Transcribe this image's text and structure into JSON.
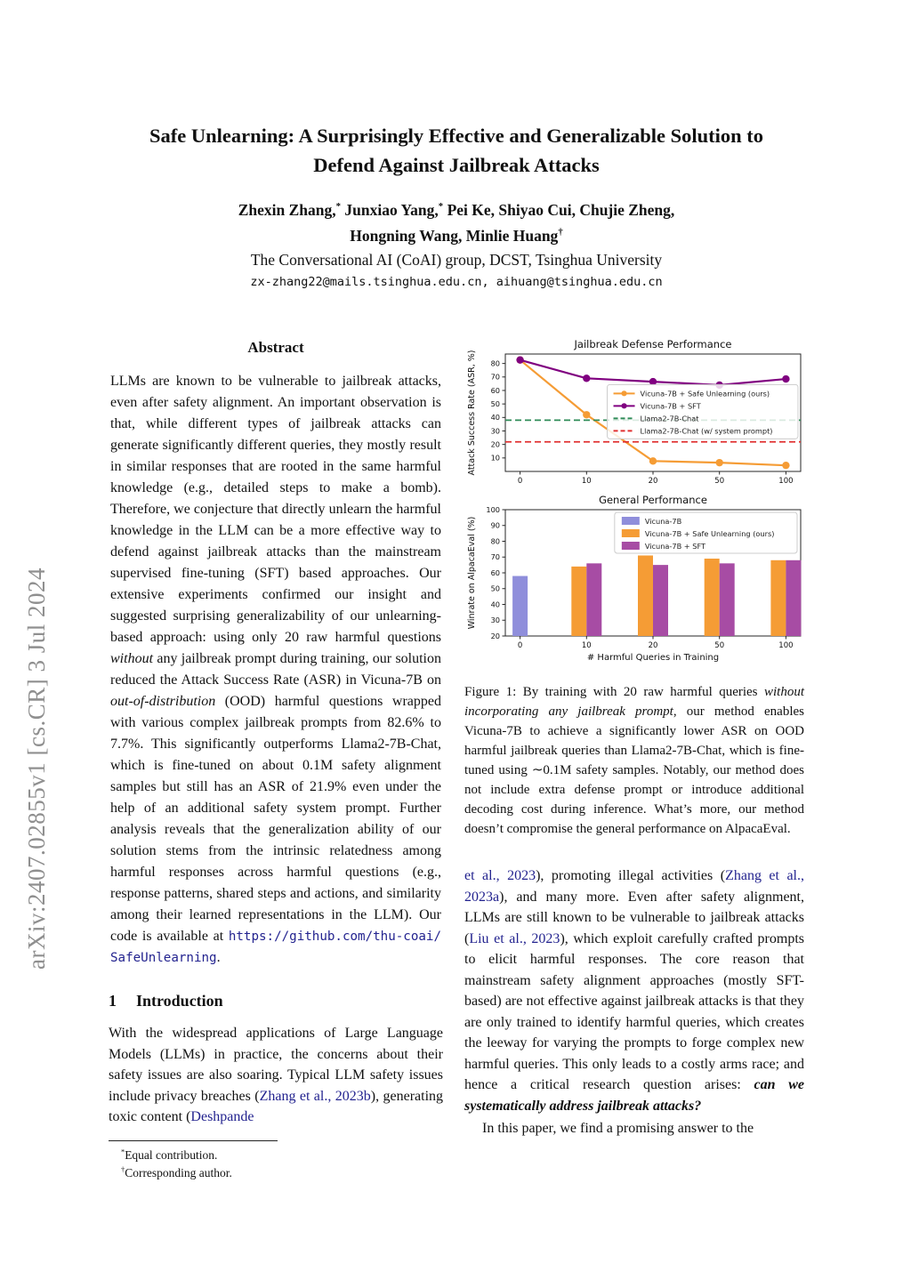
{
  "arxiv_watermark": "arXiv:2407.02855v1  [cs.CR]  3 Jul 2024",
  "header": {
    "title_line1": "Safe Unlearning: A Surprisingly Effective and Generalizable Solution to",
    "title_line2": "Defend Against Jailbreak Attacks",
    "authors_line1": [
      {
        "t": "Zhexin Zhang,"
      },
      {
        "t": "*",
        "s": "sup"
      },
      {
        "t": " Junxiao Yang,"
      },
      {
        "t": "*",
        "s": "sup"
      },
      {
        "t": " Pei Ke, Shiyao Cui, Chujie Zheng,"
      }
    ],
    "authors_line2": [
      {
        "t": "Hongning Wang, Minlie Huang"
      },
      {
        "t": "†",
        "s": "sup"
      }
    ],
    "affiliation": "The Conversational AI (CoAI) group, DCST, Tsinghua University",
    "emails": "zx-zhang22@mails.tsinghua.edu.cn, aihuang@tsinghua.edu.cn"
  },
  "abstract": {
    "heading": "Abstract",
    "segments": [
      {
        "t": "LLMs are known to be vulnerable to jailbreak attacks, even after safety alignment. An important observation is that, while different types of jailbreak attacks can generate significantly different queries, they mostly result in similar responses that are rooted in the same harmful knowledge (e.g., detailed steps to make a bomb). Therefore, we conjecture that directly unlearn the harmful knowledge in the LLM can be a more effective way to defend against jailbreak attacks than the mainstream supervised fine-tuning (SFT) based approaches. Our extensive experiments confirmed our insight and suggested surprising generalizability of our unlearning-based approach: using only 20 raw harmful questions "
      },
      {
        "t": "without",
        "s": "i"
      },
      {
        "t": " any jailbreak prompt during training, our solution reduced the Attack Success Rate (ASR) in Vicuna-7B on "
      },
      {
        "t": "out-of-distribution",
        "s": "i"
      },
      {
        "t": " (OOD) harmful questions wrapped with various complex jailbreak prompts from 82.6% to 7.7%. This significantly outperforms Llama2-7B-Chat, which is fine-tuned on about 0.1M safety alignment samples but still has an ASR of 21.9% even under the help of an additional safety system prompt. Further analysis reveals that the generalization ability of our solution stems from the intrinsic relatedness among harmful responses across harmful questions (e.g., response patterns, shared steps and actions, and similarity among their learned representations in the LLM). Our code is available at "
      },
      {
        "t": "https://github.com/thu-coai/SafeUnlearning",
        "s": "mono-link"
      },
      {
        "t": "."
      }
    ]
  },
  "introduction": {
    "number": "1",
    "heading": "Introduction",
    "segments": [
      {
        "t": "With the widespread applications of Large Language Models (LLMs) in practice, the concerns about their safety issues are also soaring. Typical LLM safety issues include privacy breaches ("
      },
      {
        "t": "Zhang et al., 2023b",
        "s": "link"
      },
      {
        "t": "), generating toxic content ("
      },
      {
        "t": "Deshpande",
        "s": "link"
      }
    ]
  },
  "footnotes": {
    "equal": [
      {
        "t": "*",
        "s": "sup"
      },
      {
        "t": "Equal contribution."
      }
    ],
    "corresponding": [
      {
        "t": "†",
        "s": "sup"
      },
      {
        "t": "Corresponding author."
      }
    ]
  },
  "figure": {
    "caption_segments": [
      {
        "t": "Figure 1: By training with 20 raw harmful queries "
      },
      {
        "t": "without incorporating any jailbreak prompt",
        "s": "i"
      },
      {
        "t": ", our method enables Vicuna-7B to achieve a significantly lower ASR on OOD harmful jailbreak queries than Llama2-7B-Chat, which is fine-tuned using ∼0.1M safety samples. Notably, our method does not include extra defense prompt or introduce additional decoding cost during inference. What’s more, our method doesn’t compromise the general performance on AlpacaEval."
      }
    ]
  },
  "right_column": {
    "para1_segments": [
      {
        "t": "et al., 2023",
        "s": "link"
      },
      {
        "t": "), promoting illegal activities ("
      },
      {
        "t": "Zhang et al., 2023a",
        "s": "link"
      },
      {
        "t": "), and many more. Even after safety alignment, LLMs are still known to be vulnerable to jailbreak attacks ("
      },
      {
        "t": "Liu et al., 2023",
        "s": "link"
      },
      {
        "t": "), which exploit carefully crafted prompts to elicit harmful responses. The core reason that mainstream safety alignment approaches (mostly SFT-based) are not effective against jailbreak attacks is that they are only trained to identify harmful queries, which creates the leeway for varying the prompts to forge complex new harmful queries. This only leads to a costly arms race; and hence a critical research question arises: "
      },
      {
        "t": "can we systematically address jailbreak attacks?",
        "s": "bi"
      }
    ],
    "para2": "In this paper, we find a promising answer to the"
  },
  "chart_data": [
    {
      "type": "line",
      "title": "Jailbreak Defense Performance",
      "ylabel": "Attack Success Rate (ASR, %)",
      "categories": [
        "0",
        "10",
        "20",
        "50",
        "100"
      ],
      "ylim": [
        0,
        87
      ],
      "yticks": [
        10,
        20,
        30,
        40,
        50,
        60,
        70,
        80
      ],
      "grid": false,
      "legend_position": "center-right",
      "series": [
        {
          "name": "Vicuna-7B + Safe Unlearning (ours)",
          "color": "#F59C35",
          "marker": true,
          "values": [
            82.6,
            42,
            7.7,
            6.5,
            4.5
          ]
        },
        {
          "name": "Vicuna-7B + SFT",
          "color": "#800080",
          "marker": true,
          "values": [
            82.6,
            69,
            66.5,
            64,
            68.5
          ]
        },
        {
          "name": "Llama2-7B-Chat",
          "color": "#2E8B57",
          "dashed": true,
          "hline": 38
        },
        {
          "name": "Llama2-7B-Chat (w/ system prompt)",
          "color": "#E03030",
          "dashed": true,
          "hline": 21.9
        }
      ]
    },
    {
      "type": "bar",
      "title": "General Performance",
      "ylabel": "Winrate on AlpacaEval (%)",
      "xlabel": "# Harmful Queries in Training",
      "categories": [
        "0",
        "10",
        "20",
        "50",
        "100"
      ],
      "ylim": [
        20,
        100
      ],
      "yticks": [
        20,
        30,
        40,
        50,
        60,
        70,
        80,
        90,
        100
      ],
      "grid": false,
      "legend_position": "top-center",
      "series": [
        {
          "name": "Vicuna-7B",
          "color": "#8F8EDB",
          "values": [
            58,
            null,
            null,
            null,
            null
          ]
        },
        {
          "name": "Vicuna-7B + Safe Unlearning (ours)",
          "color": "#F59C35",
          "values": [
            null,
            64,
            71,
            69,
            68
          ]
        },
        {
          "name": "Vicuna-7B + SFT",
          "color": "#A74CA4",
          "values": [
            null,
            66,
            65,
            66,
            68
          ]
        }
      ]
    }
  ]
}
